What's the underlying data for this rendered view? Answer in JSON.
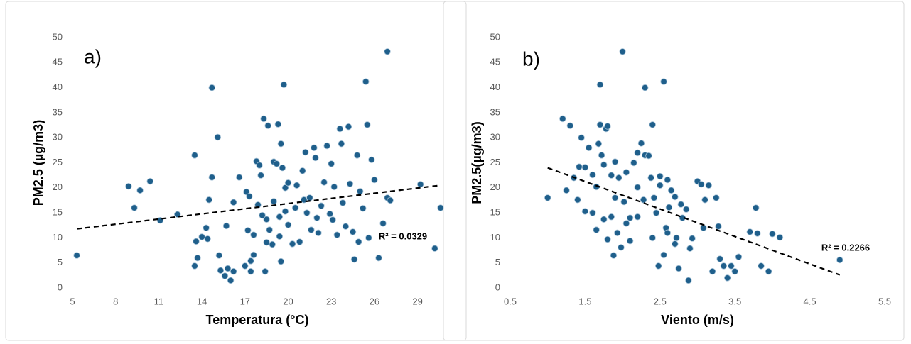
{
  "chart_data": [
    {
      "type": "scatter",
      "panel_label": "a)",
      "x_label": "Temperatura (°C)",
      "y_label": "PM2.5 (µg/m3)",
      "color": "#1f5f8b",
      "xlim": [
        5,
        30.7
      ],
      "xticks": [
        5,
        8,
        11,
        14,
        17,
        20,
        23,
        26,
        29
      ],
      "ylim": [
        0,
        50
      ],
      "yticks": [
        0,
        5,
        10,
        15,
        20,
        25,
        30,
        35,
        40,
        45,
        50
      ],
      "grid": false,
      "x": [
        5.3,
        8.9,
        9.3,
        9.7,
        10.4,
        11.1,
        12.3,
        13.5,
        13.6,
        13.7,
        13.5,
        14,
        14.3,
        14.4,
        14.5,
        14.7,
        14.7,
        15.1,
        15.2,
        15.3,
        15.6,
        15.7,
        15.8,
        16,
        16.2,
        16.2,
        16.6,
        17,
        17.1,
        17.2,
        17.3,
        17.4,
        17.4,
        17.6,
        17.6,
        17.8,
        17.9,
        18,
        18.1,
        18.3,
        18.4,
        18.5,
        18.6,
        18.5,
        18.7,
        18.9,
        19,
        19,
        19.2,
        19.3,
        19.4,
        19.4,
        19.5,
        19.5,
        19.7,
        19.6,
        19.8,
        19.8,
        20,
        20,
        20.3,
        20.5,
        20.8,
        21,
        21.2,
        21.3,
        21.5,
        21.6,
        21.8,
        21.9,
        22.1,
        22.3,
        22.5,
        22.7,
        22.9,
        23,
        23.2,
        23.4,
        23.6,
        23.7,
        23.8,
        24,
        24.2,
        24.3,
        24.5,
        24.6,
        24.8,
        25,
        25.2,
        25.4,
        25.5,
        25.6,
        25.8,
        26,
        26.3,
        26.6,
        26.9,
        26.9,
        27.1,
        29.2,
        30.2,
        30.6,
        24.9,
        22,
        20.6,
        21.1,
        18.2,
        23.1
      ],
      "values": [
        6.5,
        20.3,
        16,
        19.5,
        21.3,
        13.5,
        14.7,
        26.5,
        9.3,
        6,
        4.4,
        10.2,
        12,
        9.8,
        17.6,
        40,
        22.1,
        30.1,
        6.5,
        3.5,
        2.4,
        12.4,
        3.9,
        1.5,
        17.1,
        3.3,
        22.1,
        4.4,
        19.2,
        11.5,
        18.3,
        5.4,
        3.3,
        6.6,
        10.6,
        25.3,
        16.6,
        24.5,
        22.5,
        33.8,
        3.3,
        9.1,
        32.4,
        13.7,
        11.6,
        8.7,
        25.2,
        17.3,
        24.8,
        32.7,
        14.2,
        10.3,
        28.8,
        5.3,
        40.6,
        24,
        20,
        15.3,
        21,
        12.6,
        8.8,
        16,
        9.2,
        23.4,
        27.1,
        15,
        18,
        11.6,
        28,
        26,
        11,
        16.4,
        21.1,
        28.4,
        14.8,
        24.8,
        20.2,
        10.6,
        31.8,
        28.8,
        17,
        12.3,
        32.2,
        20.8,
        11.2,
        5.7,
        26.5,
        19.3,
        15.9,
        41.2,
        32.6,
        10,
        25.6,
        21.6,
        6,
        12.9,
        47.2,
        18,
        17.5,
        20.7,
        7.9,
        16,
        9.2,
        14,
        20.5,
        17.6,
        14.5,
        13.6
      ],
      "trendline": {
        "x": [
          5.3,
          30.6
        ],
        "values": [
          11.8,
          20.5
        ],
        "annotation": "R² = 0.0329"
      }
    },
    {
      "type": "scatter",
      "panel_label": "b)",
      "x_label": "Viento (m/s)",
      "y_label": "PM2.5(µg/m3)",
      "color": "#1f5f8b",
      "xlim": [
        0.5,
        5.5
      ],
      "xticks": [
        0.5,
        1.5,
        2.5,
        3.5,
        4.5,
        5.5
      ],
      "ylim": [
        0,
        50
      ],
      "yticks": [
        0,
        5,
        10,
        15,
        20,
        25,
        30,
        35,
        40,
        45,
        50
      ],
      "grid": false,
      "x": [
        1,
        1.2,
        1.25,
        1.3,
        1.35,
        1.4,
        1.42,
        1.45,
        1.5,
        1.5,
        1.55,
        1.6,
        1.6,
        1.65,
        1.68,
        1.7,
        1.7,
        1.72,
        1.75,
        1.75,
        1.78,
        1.8,
        1.8,
        1.85,
        1.85,
        1.9,
        1.9,
        1.93,
        1.95,
        1.98,
        2,
        2.02,
        2.05,
        2.1,
        2.1,
        2.15,
        2.2,
        2.2,
        2.25,
        2.28,
        2.3,
        2.3,
        2.35,
        2.38,
        2.4,
        2.42,
        2.45,
        2.5,
        2.5,
        2.55,
        2.55,
        2.58,
        2.6,
        2.62,
        2.65,
        2.7,
        2.72,
        2.75,
        2.78,
        2.8,
        2.85,
        2.88,
        2.9,
        2.93,
        3,
        3.05,
        3.08,
        3.1,
        3.15,
        3.2,
        3.25,
        3.28,
        3.3,
        3.35,
        3.4,
        3.45,
        3.5,
        3.55,
        3.7,
        3.78,
        3.8,
        3.85,
        3.95,
        4,
        4.1,
        4.9,
        2.48,
        1.88,
        2.05,
        2.4,
        2.7,
        2.2,
        1.65,
        2.6
      ],
      "values": [
        18,
        33.8,
        19.5,
        32.4,
        22,
        17.6,
        24.2,
        30,
        15.3,
        24.1,
        28,
        22.6,
        15,
        20.2,
        28.8,
        40.6,
        32.6,
        26.5,
        24.6,
        13.7,
        31.8,
        32.3,
        9.7,
        22.5,
        14.2,
        25.2,
        18,
        11,
        22,
        8.1,
        47.2,
        17.2,
        23.1,
        9.4,
        14,
        25,
        27,
        20.1,
        28.9,
        17.6,
        40,
        26.5,
        26.4,
        22,
        32.6,
        18,
        15,
        20.5,
        22.3,
        41.2,
        6.6,
        12,
        21.6,
        16.1,
        19.5,
        18.2,
        10,
        3.9,
        16.7,
        14,
        15.7,
        1.5,
        7.9,
        9.9,
        21.3,
        20.7,
        12,
        17.6,
        20.5,
        3.3,
        18,
        12.3,
        5.8,
        4.4,
        2,
        4.4,
        3.3,
        6.2,
        11.2,
        16,
        10.9,
        4.4,
        3.3,
        10.8,
        10.1,
        5.6,
        4.4,
        6.5,
        12.9,
        10,
        8.8,
        14.2,
        11.6,
        11
      ],
      "trendline": {
        "x": [
          1,
          4.9
        ],
        "values": [
          24,
          2.6
        ],
        "annotation": "R² = 0.2266"
      }
    }
  ]
}
